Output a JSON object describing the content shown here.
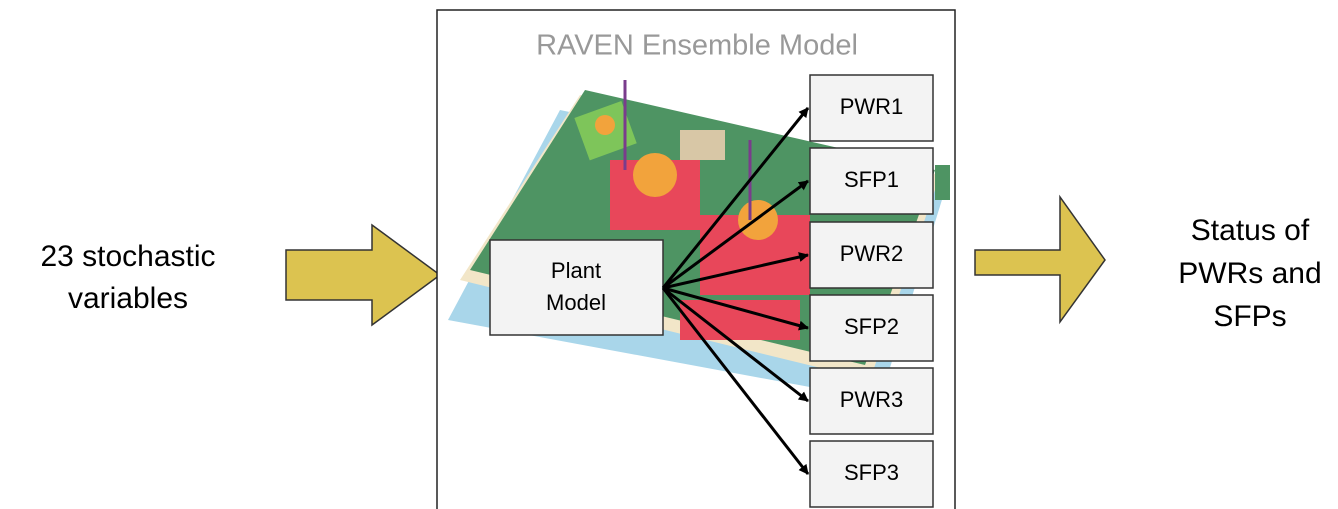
{
  "title": "RAVEN Ensemble Model",
  "input": {
    "lines": [
      "23 stochastic",
      "variables"
    ]
  },
  "plant": {
    "lines": [
      "Plant",
      "Model"
    ]
  },
  "outputs": [
    "PWR1",
    "SFP1",
    "PWR2",
    "SFP2",
    "PWR3",
    "SFP3"
  ],
  "result": {
    "lines": [
      "Status of",
      "PWRs and",
      "SFPs"
    ]
  }
}
